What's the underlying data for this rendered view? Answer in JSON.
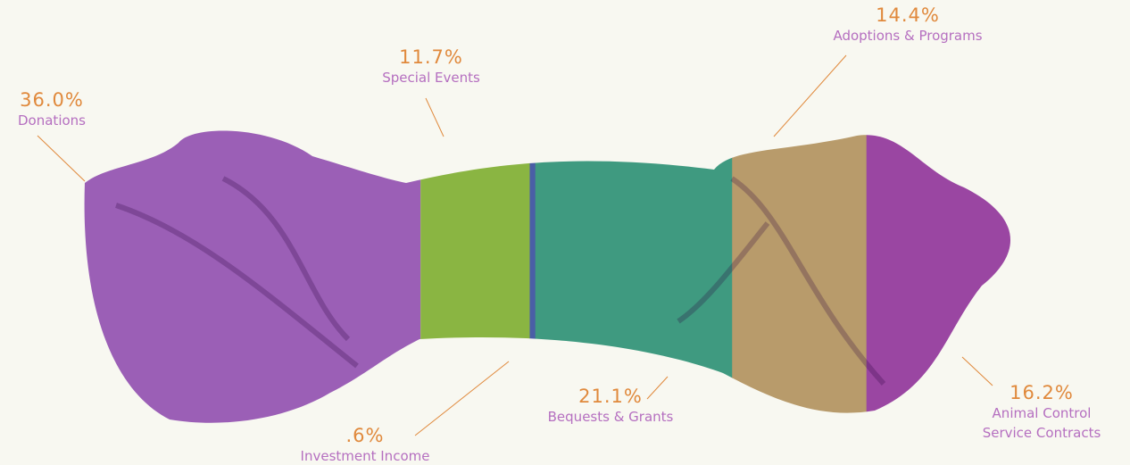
{
  "chart_data": {
    "type": "bar",
    "categories": [
      "Donations",
      "Special Events",
      "Investment Income",
      "Bequests & Grants",
      "Adoptions & Programs",
      "Animal Control Service Contracts"
    ],
    "values": [
      36.0,
      11.7,
      0.6,
      21.1,
      14.4,
      16.2
    ],
    "value_labels": [
      "36.0%",
      "11.7%",
      ".6%",
      "21.1%",
      "14.4%",
      "16.2%"
    ],
    "colors": [
      "#9b5fb6",
      "#8ab542",
      "#4a5ea6",
      "#3f9a80",
      "#b89b6b",
      "#9a46a2"
    ]
  }
}
